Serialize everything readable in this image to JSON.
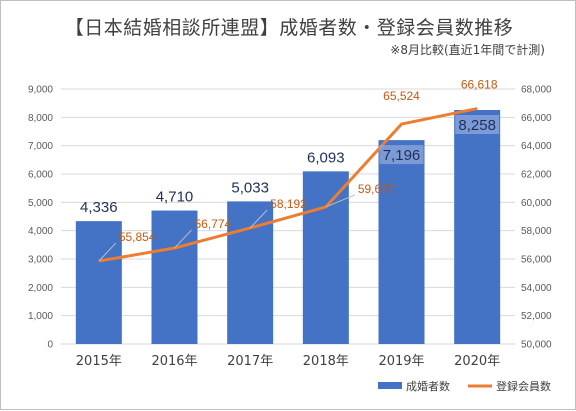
{
  "chart_data": {
    "type": "bar",
    "title": "【日本結婚相談所連盟】成婚者数・登録会員数推移",
    "subtitle": "※8月比較(直近1年間で計測)",
    "categories": [
      "2015年",
      "2016年",
      "2017年",
      "2018年",
      "2019年",
      "2020年"
    ],
    "series": [
      {
        "name": "成婚者数",
        "type": "bar",
        "axis": "left",
        "color": "#4472c4",
        "values": [
          4336,
          4710,
          5033,
          6093,
          7196,
          8258
        ],
        "labels": [
          "4,336",
          "4,710",
          "5,033",
          "6,093",
          "7,196",
          "8,258"
        ]
      },
      {
        "name": "登録会員数",
        "type": "line",
        "axis": "right",
        "color": "#ed7d31",
        "values": [
          55854,
          56774,
          58192,
          59677,
          65524,
          66618
        ],
        "labels": [
          "55,854",
          "56,774",
          "58,192",
          "59,677",
          "65,524",
          "66,618"
        ]
      }
    ],
    "y_left": {
      "min": 0,
      "max": 9000,
      "ticks": [
        "0",
        "1,000",
        "2,000",
        "3,000",
        "4,000",
        "5,000",
        "6,000",
        "7,000",
        "8,000",
        "9,000"
      ]
    },
    "y_right": {
      "min": 50000,
      "max": 68000,
      "ticks": [
        "50,000",
        "52,000",
        "54,000",
        "56,000",
        "58,000",
        "60,000",
        "62,000",
        "64,000",
        "66,000",
        "68,000"
      ]
    },
    "grid": true,
    "legend_position": "bottom-right"
  }
}
